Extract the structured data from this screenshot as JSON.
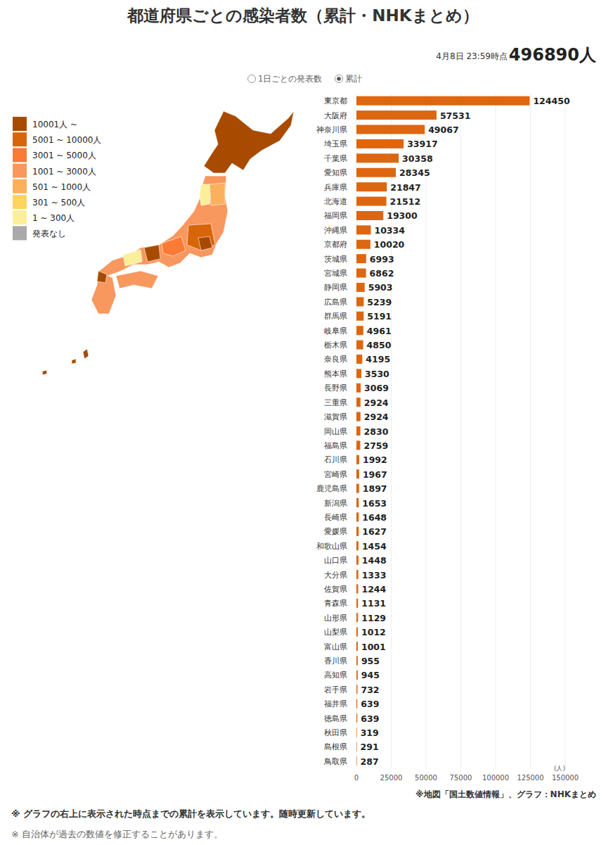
{
  "header": {
    "title": "都道府県ごとの感染者数（累計・NHKまとめ）",
    "timestamp": "4月8日 23:59時点",
    "total_label": "496890人",
    "options": [
      {
        "label": "1日ごとの発表数",
        "selected": false
      },
      {
        "label": "累計",
        "selected": true
      }
    ]
  },
  "map_legend": [
    {
      "label": "10001人 ~",
      "color": "#a84b00"
    },
    {
      "label": "5001 ~ 10000人",
      "color": "#d9650a"
    },
    {
      "label": "3001 ~ 5000人",
      "color": "#fb7a35"
    },
    {
      "label": "1001 ~ 3000人",
      "color": "#f8975e"
    },
    {
      "label": "501 ~ 1000人",
      "color": "#fbb05d"
    },
    {
      "label": "301 ~ 500人",
      "color": "#fdd55c"
    },
    {
      "label": "1 ~ 300人",
      "color": "#fcef9a"
    },
    {
      "label": "発表なし",
      "color": "#aaaaaa"
    }
  ],
  "chart_data": {
    "type": "bar",
    "orientation": "horizontal",
    "data_labels": true,
    "grid": true,
    "xlabel": "(人)",
    "categories": [
      "東京都",
      "大阪府",
      "神奈川県",
      "埼玉県",
      "千葉県",
      "愛知県",
      "兵庫県",
      "北海道",
      "福岡県",
      "沖縄県",
      "京都府",
      "茨城県",
      "宮城県",
      "静岡県",
      "広島県",
      "群馬県",
      "岐阜県",
      "栃木県",
      "奈良県",
      "熊本県",
      "長野県",
      "三重県",
      "滋賀県",
      "岡山県",
      "福島県",
      "石川県",
      "宮崎県",
      "鹿児島県",
      "新潟県",
      "長崎県",
      "愛媛県",
      "和歌山県",
      "山口県",
      "大分県",
      "佐賀県",
      "青森県",
      "山形県",
      "山梨県",
      "富山県",
      "香川県",
      "高知県",
      "岩手県",
      "福井県",
      "徳島県",
      "秋田県",
      "島根県",
      "鳥取県"
    ],
    "values": [
      124450,
      57531,
      49067,
      33917,
      30358,
      28345,
      21847,
      21512,
      19300,
      10334,
      10020,
      6993,
      6862,
      5903,
      5239,
      5191,
      4961,
      4850,
      4195,
      3530,
      3069,
      2924,
      2924,
      2830,
      2759,
      1992,
      1967,
      1897,
      1653,
      1648,
      1627,
      1454,
      1448,
      1333,
      1244,
      1131,
      1129,
      1012,
      1001,
      955,
      945,
      732,
      639,
      639,
      319,
      291,
      287
    ],
    "color": "#dd6611",
    "xlim": [
      0,
      150000
    ],
    "xticks": [
      0,
      25000,
      50000,
      75000,
      100000,
      125000,
      150000
    ]
  },
  "footer": {
    "source": "※地図「国土数値情報」、グラフ：NHKまとめ",
    "notes": [
      "※ グラフの右上に表示された時点までの累計を表示しています。随時更新しています。",
      "※ 自治体が過去の数値を修正することがあります。"
    ]
  }
}
